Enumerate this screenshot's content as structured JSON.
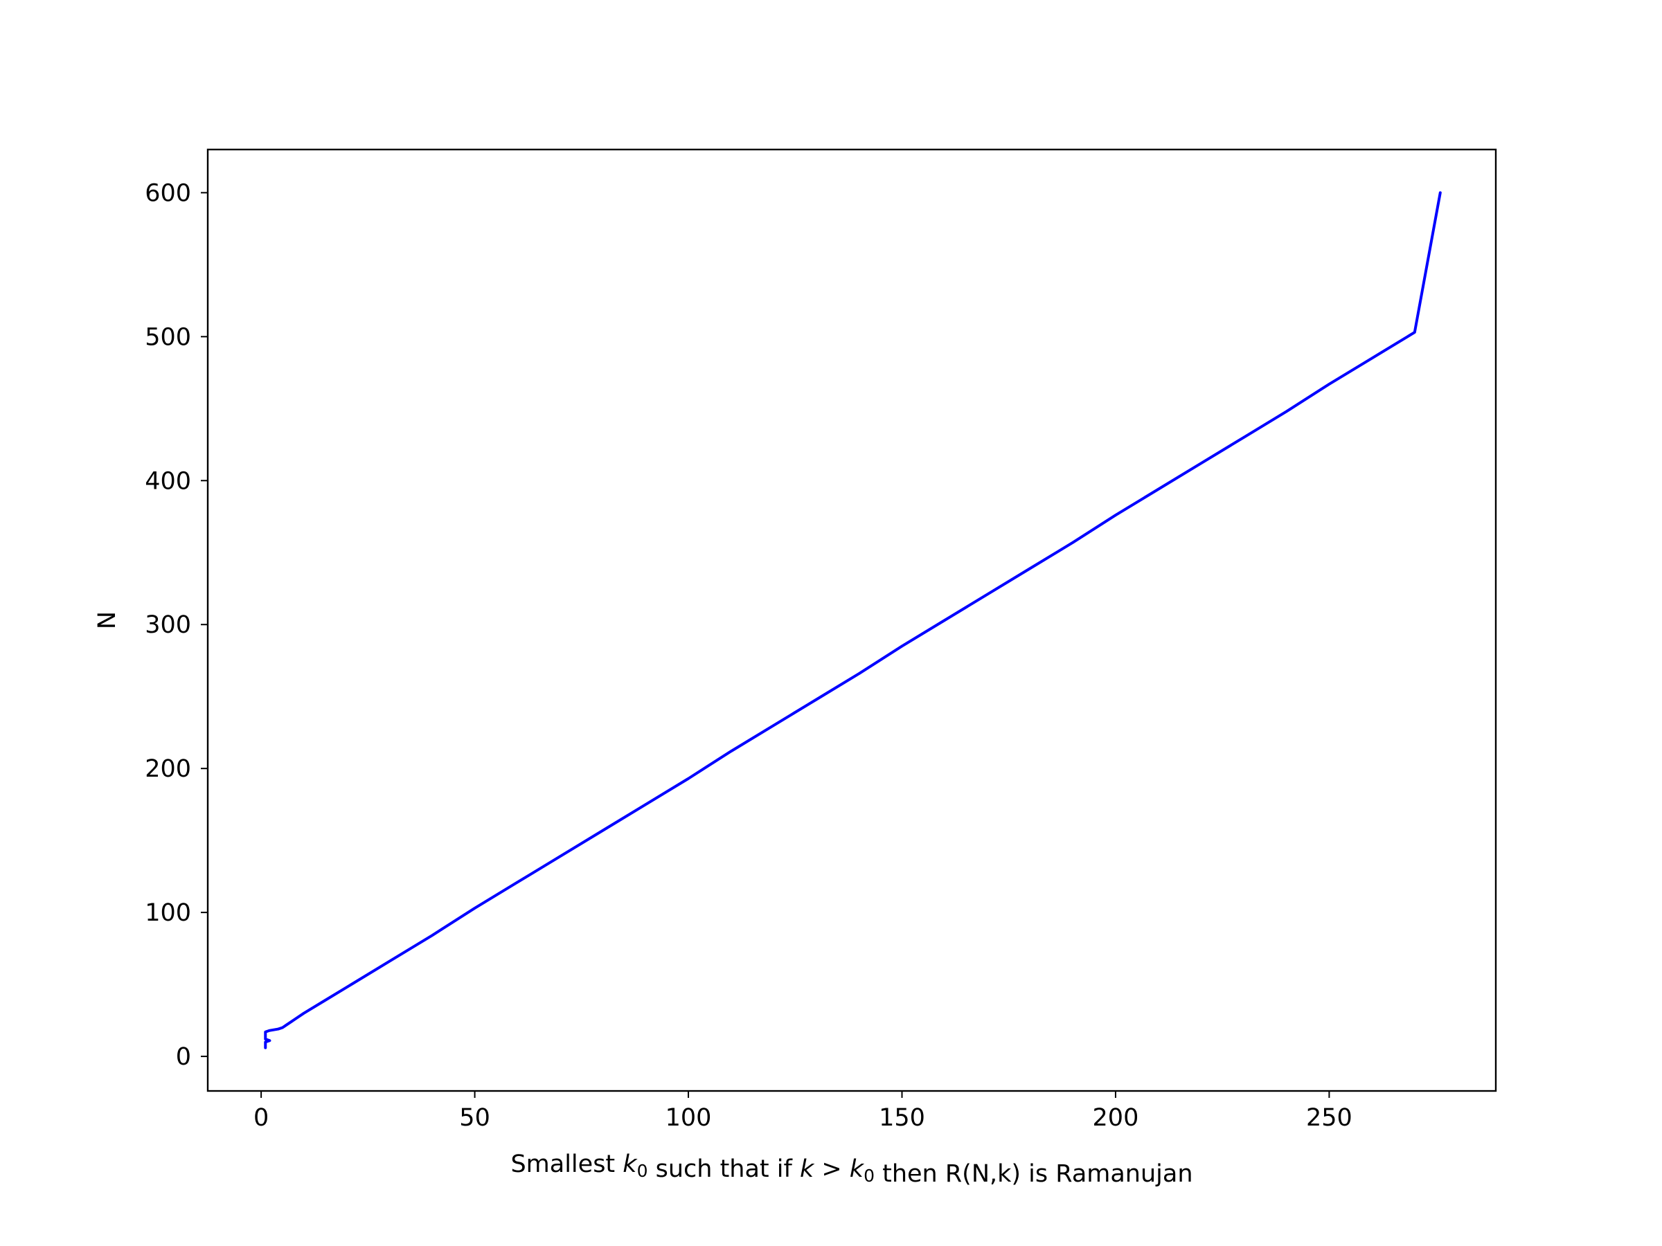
{
  "chart_data": {
    "type": "line",
    "title": "",
    "xlabel": {
      "parts": [
        {
          "text": "Smallest ",
          "style": "normal"
        },
        {
          "text": "k",
          "style": "italic"
        },
        {
          "text": "0",
          "style": "sub"
        },
        {
          "text": " such that if ",
          "style": "normal"
        },
        {
          "text": "k",
          "style": "italic"
        },
        {
          "text": " > ",
          "style": "normal"
        },
        {
          "text": "k",
          "style": "italic"
        },
        {
          "text": "0",
          "style": "sub"
        },
        {
          "text": " then R(N,k) is Ramanujan",
          "style": "normal"
        }
      ]
    },
    "ylabel": "N",
    "xlim": [
      -12.5,
      289
    ],
    "ylim": [
      -24,
      630
    ],
    "xticks": [
      0,
      50,
      100,
      150,
      200,
      250
    ],
    "yticks": [
      0,
      100,
      200,
      300,
      400,
      500,
      600
    ],
    "grid": false,
    "legend": "none",
    "series": [
      {
        "color": "#0000ff",
        "points": [
          [
            1,
            6
          ],
          [
            1,
            10
          ],
          [
            2,
            11
          ],
          [
            1,
            12
          ],
          [
            1,
            13
          ],
          [
            1,
            15
          ],
          [
            1,
            17
          ],
          [
            2,
            18
          ],
          [
            4,
            19
          ],
          [
            5,
            20
          ],
          [
            6,
            22
          ],
          [
            7,
            24
          ],
          [
            8,
            26
          ],
          [
            10,
            30
          ],
          [
            15,
            39
          ],
          [
            20,
            48
          ],
          [
            30,
            66
          ],
          [
            40,
            84
          ],
          [
            50,
            103
          ],
          [
            60,
            121
          ],
          [
            70,
            139
          ],
          [
            80,
            157
          ],
          [
            90,
            175
          ],
          [
            100,
            193
          ],
          [
            110,
            212
          ],
          [
            120,
            230
          ],
          [
            130,
            248
          ],
          [
            140,
            266
          ],
          [
            150,
            285
          ],
          [
            160,
            303
          ],
          [
            170,
            321
          ],
          [
            180,
            339
          ],
          [
            190,
            357
          ],
          [
            200,
            376
          ],
          [
            210,
            394
          ],
          [
            220,
            412
          ],
          [
            230,
            430
          ],
          [
            240,
            448
          ],
          [
            250,
            467
          ],
          [
            260,
            485
          ],
          [
            270,
            503
          ],
          [
            276,
            600
          ]
        ]
      }
    ]
  }
}
